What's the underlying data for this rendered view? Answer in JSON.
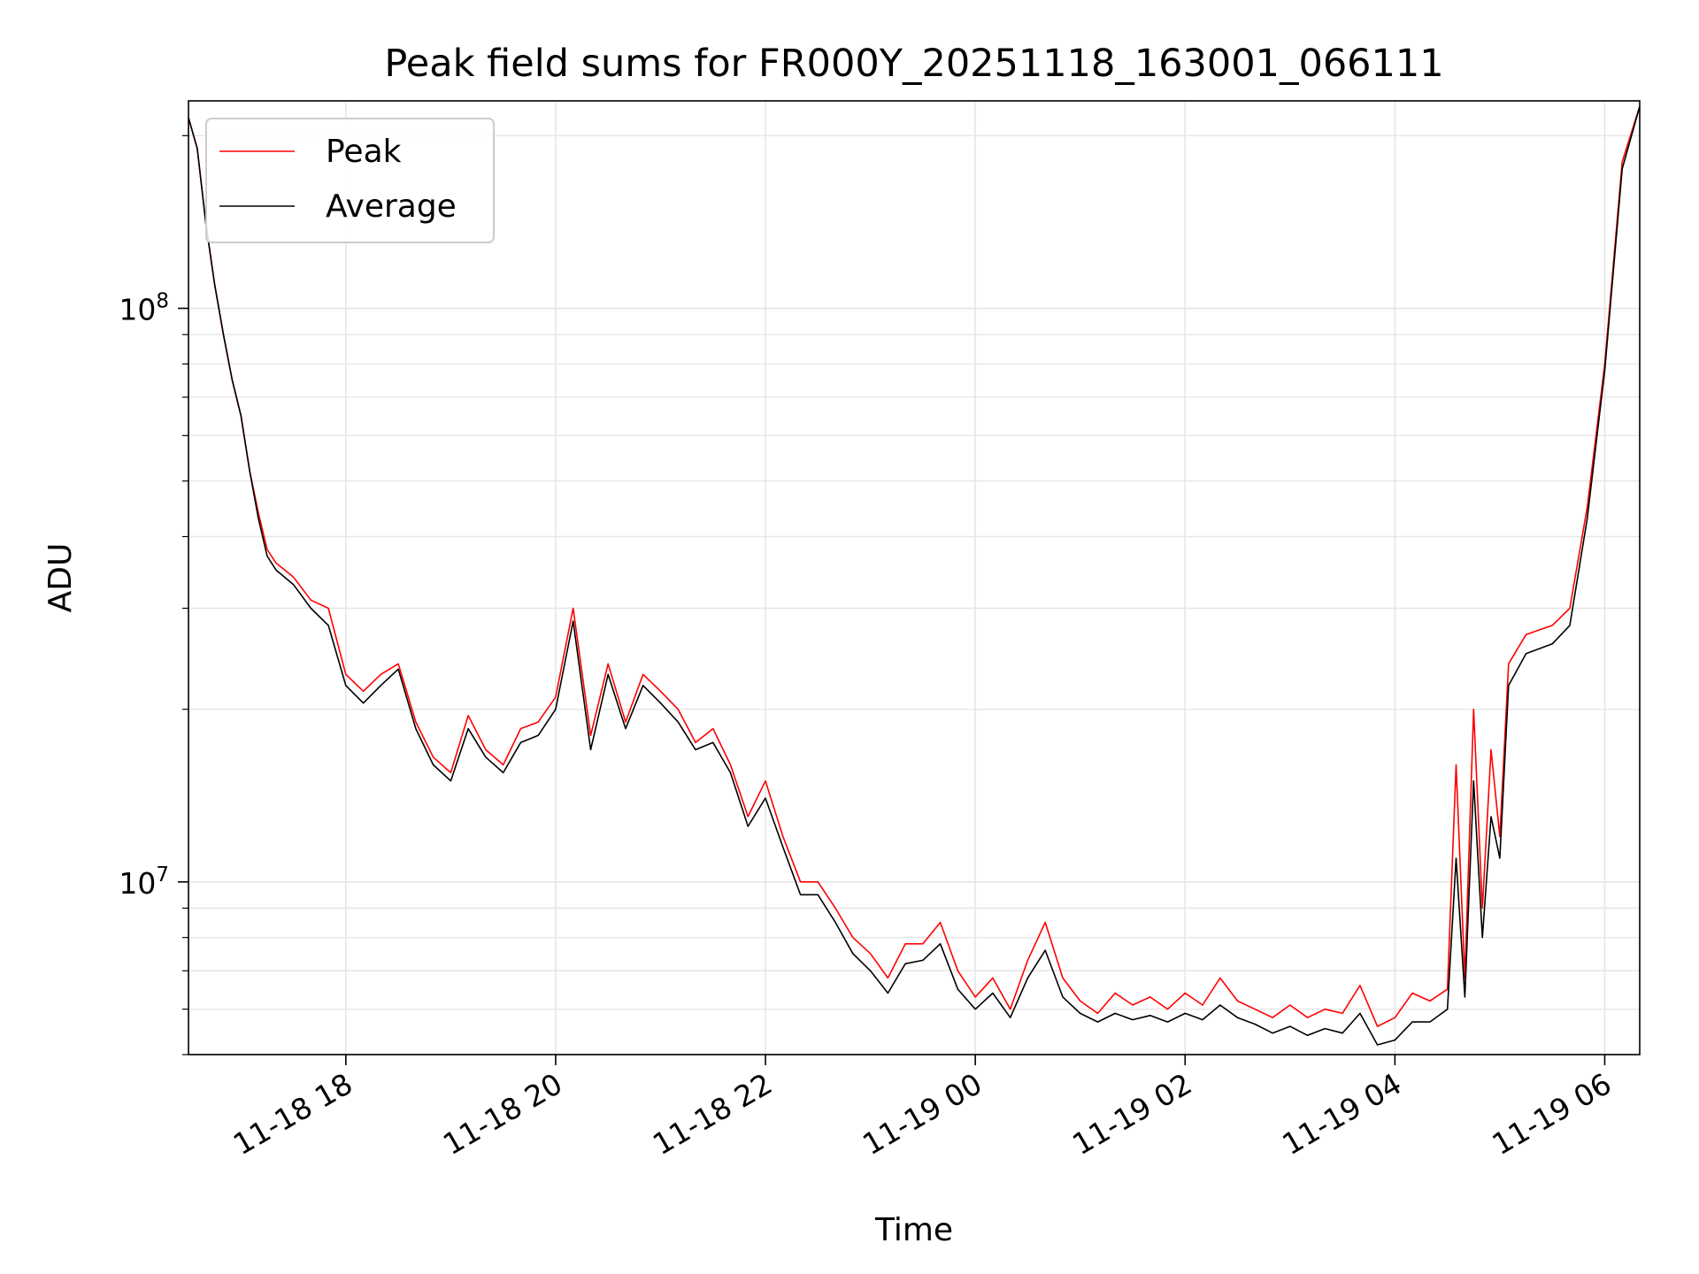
{
  "chart_data": {
    "type": "line",
    "title": "Peak field sums for FR000Y_20251118_163001_066111",
    "xlabel": "Time",
    "ylabel": "ADU",
    "y_scale": "log",
    "xlim": [
      "2025-11-18 16:30",
      "2025-11-19 06:20"
    ],
    "ylim": [
      5000000,
      230000000
    ],
    "grid": true,
    "legend_position": "top-left",
    "x_ticks": [
      {
        "t": "2025-11-18 18:00",
        "label": "11-18 18"
      },
      {
        "t": "2025-11-18 20:00",
        "label": "11-18 20"
      },
      {
        "t": "2025-11-18 22:00",
        "label": "11-18 22"
      },
      {
        "t": "2025-11-19 00:00",
        "label": "11-19 00"
      },
      {
        "t": "2025-11-19 02:00",
        "label": "11-19 02"
      },
      {
        "t": "2025-11-19 04:00",
        "label": "11-19 04"
      },
      {
        "t": "2025-11-19 06:00",
        "label": "11-19 06"
      }
    ],
    "y_ticks": [
      {
        "value": 10000000,
        "base": "10",
        "exp": "7"
      },
      {
        "value": 100000000,
        "base": "10",
        "exp": "8"
      }
    ],
    "series": [
      {
        "name": "Peak",
        "color": "#ff0000",
        "points": [
          [
            "2025-11-18 16:30",
            215000000
          ],
          [
            "2025-11-18 16:35",
            190000000
          ],
          [
            "2025-11-18 16:40",
            140000000
          ],
          [
            "2025-11-18 16:45",
            110000000
          ],
          [
            "2025-11-18 16:50",
            90000000
          ],
          [
            "2025-11-18 16:55",
            75000000
          ],
          [
            "2025-11-18 17:00",
            65000000
          ],
          [
            "2025-11-18 17:05",
            52000000
          ],
          [
            "2025-11-18 17:10",
            44000000
          ],
          [
            "2025-11-18 17:15",
            38000000
          ],
          [
            "2025-11-18 17:20",
            36000000
          ],
          [
            "2025-11-18 17:30",
            34000000
          ],
          [
            "2025-11-18 17:40",
            31000000
          ],
          [
            "2025-11-18 17:50",
            30000000
          ],
          [
            "2025-11-18 18:00",
            23000000
          ],
          [
            "2025-11-18 18:10",
            21500000
          ],
          [
            "2025-11-18 18:20",
            23000000
          ],
          [
            "2025-11-18 18:30",
            24000000
          ],
          [
            "2025-11-18 18:40",
            19000000
          ],
          [
            "2025-11-18 18:50",
            16500000
          ],
          [
            "2025-11-18 19:00",
            15500000
          ],
          [
            "2025-11-18 19:10",
            19500000
          ],
          [
            "2025-11-18 19:20",
            17000000
          ],
          [
            "2025-11-18 19:30",
            16000000
          ],
          [
            "2025-11-18 19:40",
            18500000
          ],
          [
            "2025-11-18 19:50",
            19000000
          ],
          [
            "2025-11-18 20:00",
            21000000
          ],
          [
            "2025-11-18 20:10",
            30000000
          ],
          [
            "2025-11-18 20:20",
            18000000
          ],
          [
            "2025-11-18 20:30",
            24000000
          ],
          [
            "2025-11-18 20:40",
            19000000
          ],
          [
            "2025-11-18 20:50",
            23000000
          ],
          [
            "2025-11-18 21:00",
            21500000
          ],
          [
            "2025-11-18 21:10",
            20000000
          ],
          [
            "2025-11-18 21:20",
            17500000
          ],
          [
            "2025-11-18 21:30",
            18500000
          ],
          [
            "2025-11-18 21:40",
            16000000
          ],
          [
            "2025-11-18 21:50",
            13000000
          ],
          [
            "2025-11-18 22:00",
            15000000
          ],
          [
            "2025-11-18 22:10",
            12000000
          ],
          [
            "2025-11-18 22:20",
            10000000
          ],
          [
            "2025-11-18 22:30",
            10000000
          ],
          [
            "2025-11-18 22:40",
            9000000
          ],
          [
            "2025-11-18 22:50",
            8000000
          ],
          [
            "2025-11-18 23:00",
            7500000
          ],
          [
            "2025-11-18 23:10",
            6800000
          ],
          [
            "2025-11-18 23:20",
            7800000
          ],
          [
            "2025-11-18 23:30",
            7800000
          ],
          [
            "2025-11-18 23:40",
            8500000
          ],
          [
            "2025-11-18 23:50",
            7000000
          ],
          [
            "2025-11-19 00:00",
            6300000
          ],
          [
            "2025-11-19 00:10",
            6800000
          ],
          [
            "2025-11-19 00:20",
            6000000
          ],
          [
            "2025-11-19 00:30",
            7300000
          ],
          [
            "2025-11-19 00:40",
            8500000
          ],
          [
            "2025-11-19 00:50",
            6800000
          ],
          [
            "2025-11-19 01:00",
            6200000
          ],
          [
            "2025-11-19 01:10",
            5900000
          ],
          [
            "2025-11-19 01:20",
            6400000
          ],
          [
            "2025-11-19 01:30",
            6100000
          ],
          [
            "2025-11-19 01:40",
            6300000
          ],
          [
            "2025-11-19 01:50",
            6000000
          ],
          [
            "2025-11-19 02:00",
            6400000
          ],
          [
            "2025-11-19 02:10",
            6100000
          ],
          [
            "2025-11-19 02:20",
            6800000
          ],
          [
            "2025-11-19 02:30",
            6200000
          ],
          [
            "2025-11-19 02:40",
            6000000
          ],
          [
            "2025-11-19 02:50",
            5800000
          ],
          [
            "2025-11-19 03:00",
            6100000
          ],
          [
            "2025-11-19 03:10",
            5800000
          ],
          [
            "2025-11-19 03:20",
            6000000
          ],
          [
            "2025-11-19 03:30",
            5900000
          ],
          [
            "2025-11-19 03:40",
            6600000
          ],
          [
            "2025-11-19 03:50",
            5600000
          ],
          [
            "2025-11-19 04:00",
            5800000
          ],
          [
            "2025-11-19 04:10",
            6400000
          ],
          [
            "2025-11-19 04:20",
            6200000
          ],
          [
            "2025-11-19 04:30",
            6500000
          ],
          [
            "2025-11-19 04:35",
            16000000
          ],
          [
            "2025-11-19 04:40",
            6800000
          ],
          [
            "2025-11-19 04:45",
            20000000
          ],
          [
            "2025-11-19 04:50",
            9000000
          ],
          [
            "2025-11-19 04:55",
            17000000
          ],
          [
            "2025-11-19 05:00",
            12000000
          ],
          [
            "2025-11-19 05:05",
            24000000
          ],
          [
            "2025-11-19 05:15",
            27000000
          ],
          [
            "2025-11-19 05:30",
            28000000
          ],
          [
            "2025-11-19 05:40",
            30000000
          ],
          [
            "2025-11-19 05:50",
            45000000
          ],
          [
            "2025-11-19 06:00",
            80000000
          ],
          [
            "2025-11-19 06:10",
            180000000
          ],
          [
            "2025-11-19 06:20",
            225000000
          ]
        ]
      },
      {
        "name": "Average",
        "color": "#000000",
        "points": [
          [
            "2025-11-18 16:30",
            215000000
          ],
          [
            "2025-11-18 16:35",
            190000000
          ],
          [
            "2025-11-18 16:40",
            140000000
          ],
          [
            "2025-11-18 16:45",
            110000000
          ],
          [
            "2025-11-18 16:50",
            90000000
          ],
          [
            "2025-11-18 16:55",
            75000000
          ],
          [
            "2025-11-18 17:00",
            65000000
          ],
          [
            "2025-11-18 17:05",
            52000000
          ],
          [
            "2025-11-18 17:10",
            43000000
          ],
          [
            "2025-11-18 17:15",
            37000000
          ],
          [
            "2025-11-18 17:20",
            35000000
          ],
          [
            "2025-11-18 17:30",
            33000000
          ],
          [
            "2025-11-18 17:40",
            30000000
          ],
          [
            "2025-11-18 17:50",
            28000000
          ],
          [
            "2025-11-18 18:00",
            22000000
          ],
          [
            "2025-11-18 18:10",
            20500000
          ],
          [
            "2025-11-18 18:20",
            22000000
          ],
          [
            "2025-11-18 18:30",
            23500000
          ],
          [
            "2025-11-18 18:40",
            18500000
          ],
          [
            "2025-11-18 18:50",
            16000000
          ],
          [
            "2025-11-18 19:00",
            15000000
          ],
          [
            "2025-11-18 19:10",
            18500000
          ],
          [
            "2025-11-18 19:20",
            16500000
          ],
          [
            "2025-11-18 19:30",
            15500000
          ],
          [
            "2025-11-18 19:40",
            17500000
          ],
          [
            "2025-11-18 19:50",
            18000000
          ],
          [
            "2025-11-18 20:00",
            20000000
          ],
          [
            "2025-11-18 20:10",
            28500000
          ],
          [
            "2025-11-18 20:20",
            17000000
          ],
          [
            "2025-11-18 20:30",
            23000000
          ],
          [
            "2025-11-18 20:40",
            18500000
          ],
          [
            "2025-11-18 20:50",
            22000000
          ],
          [
            "2025-11-18 21:00",
            20500000
          ],
          [
            "2025-11-18 21:10",
            19000000
          ],
          [
            "2025-11-18 21:20",
            17000000
          ],
          [
            "2025-11-18 21:30",
            17500000
          ],
          [
            "2025-11-18 21:40",
            15500000
          ],
          [
            "2025-11-18 21:50",
            12500000
          ],
          [
            "2025-11-18 22:00",
            14000000
          ],
          [
            "2025-11-18 22:10",
            11500000
          ],
          [
            "2025-11-18 22:20",
            9500000
          ],
          [
            "2025-11-18 22:30",
            9500000
          ],
          [
            "2025-11-18 22:40",
            8500000
          ],
          [
            "2025-11-18 22:50",
            7500000
          ],
          [
            "2025-11-18 23:00",
            7000000
          ],
          [
            "2025-11-18 23:10",
            6400000
          ],
          [
            "2025-11-18 23:20",
            7200000
          ],
          [
            "2025-11-18 23:30",
            7300000
          ],
          [
            "2025-11-18 23:40",
            7800000
          ],
          [
            "2025-11-18 23:50",
            6500000
          ],
          [
            "2025-11-19 00:00",
            6000000
          ],
          [
            "2025-11-19 00:10",
            6400000
          ],
          [
            "2025-11-19 00:20",
            5800000
          ],
          [
            "2025-11-19 00:30",
            6800000
          ],
          [
            "2025-11-19 00:40",
            7600000
          ],
          [
            "2025-11-19 00:50",
            6300000
          ],
          [
            "2025-11-19 01:00",
            5900000
          ],
          [
            "2025-11-19 01:10",
            5700000
          ],
          [
            "2025-11-19 01:20",
            5900000
          ],
          [
            "2025-11-19 01:30",
            5750000
          ],
          [
            "2025-11-19 01:40",
            5850000
          ],
          [
            "2025-11-19 01:50",
            5700000
          ],
          [
            "2025-11-19 02:00",
            5900000
          ],
          [
            "2025-11-19 02:10",
            5750000
          ],
          [
            "2025-11-19 02:20",
            6100000
          ],
          [
            "2025-11-19 02:30",
            5800000
          ],
          [
            "2025-11-19 02:40",
            5650000
          ],
          [
            "2025-11-19 02:50",
            5450000
          ],
          [
            "2025-11-19 03:00",
            5600000
          ],
          [
            "2025-11-19 03:10",
            5400000
          ],
          [
            "2025-11-19 03:20",
            5550000
          ],
          [
            "2025-11-19 03:30",
            5450000
          ],
          [
            "2025-11-19 03:40",
            5900000
          ],
          [
            "2025-11-19 03:50",
            5200000
          ],
          [
            "2025-11-19 04:00",
            5300000
          ],
          [
            "2025-11-19 04:10",
            5700000
          ],
          [
            "2025-11-19 04:20",
            5700000
          ],
          [
            "2025-11-19 04:30",
            6000000
          ],
          [
            "2025-11-19 04:35",
            11000000
          ],
          [
            "2025-11-19 04:40",
            6300000
          ],
          [
            "2025-11-19 04:45",
            15000000
          ],
          [
            "2025-11-19 04:50",
            8000000
          ],
          [
            "2025-11-19 04:55",
            13000000
          ],
          [
            "2025-11-19 05:00",
            11000000
          ],
          [
            "2025-11-19 05:05",
            22000000
          ],
          [
            "2025-11-19 05:15",
            25000000
          ],
          [
            "2025-11-19 05:30",
            26000000
          ],
          [
            "2025-11-19 05:40",
            28000000
          ],
          [
            "2025-11-19 05:50",
            43000000
          ],
          [
            "2025-11-19 06:00",
            78000000
          ],
          [
            "2025-11-19 06:10",
            175000000
          ],
          [
            "2025-11-19 06:20",
            225000000
          ]
        ]
      }
    ]
  }
}
